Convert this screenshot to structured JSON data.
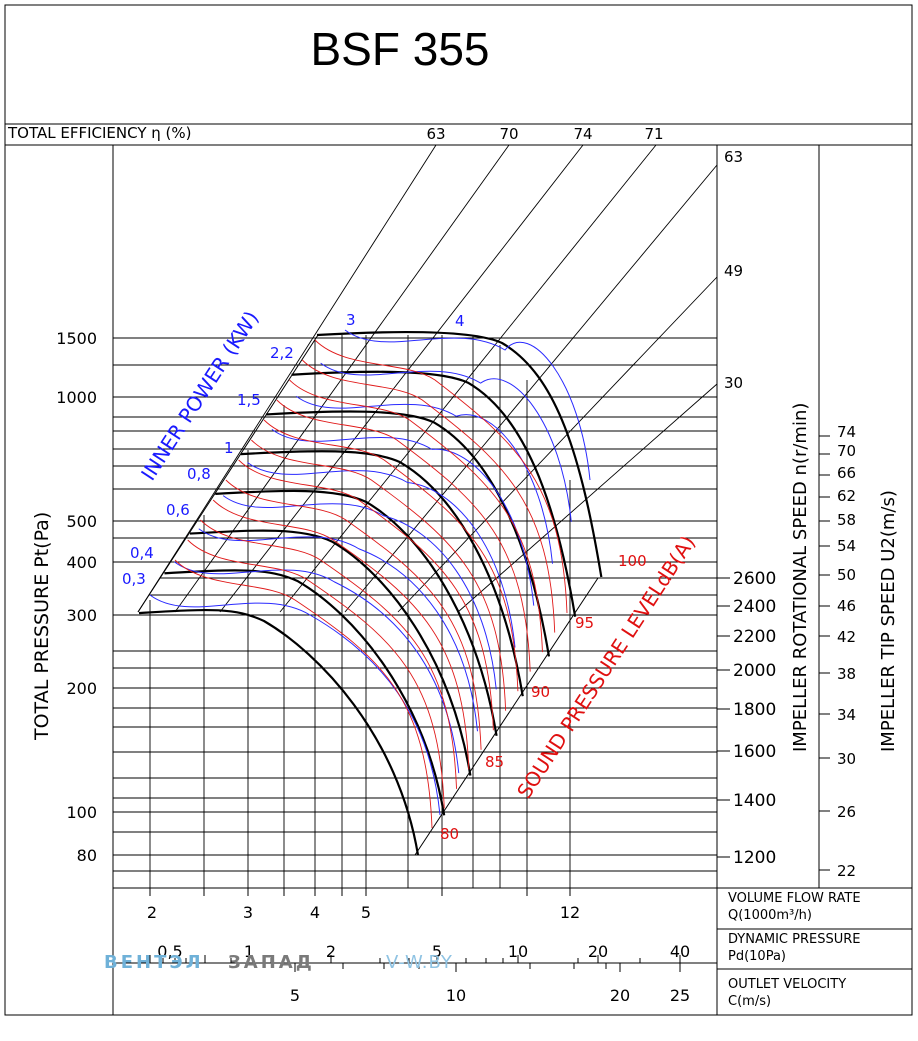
{
  "chart_data": {
    "type": "line",
    "title": "BSF 355",
    "efficiency": {
      "label": "TOTAL EFFICIENCY η (%)",
      "values": [
        "63",
        "70",
        "74",
        "71"
      ]
    },
    "y_axis": {
      "label": "TOTAL PRESSURE Pt(Pa)",
      "scale": "log",
      "ylim": [
        75,
        1700
      ],
      "ticks": [
        "1500",
        "1000",
        "500",
        "400",
        "300",
        "200",
        "100",
        "80"
      ]
    },
    "x_axis": {
      "scale": "log",
      "flow": {
        "label_line1": "VOLUME FLOW RATE",
        "label_line2": "Q(1000m³/h)",
        "ticks": [
          "2",
          "3",
          "4",
          "5",
          "12"
        ]
      },
      "dynamic_pressure": {
        "label_line1": "DYNAMIC PRESSURE",
        "label_line2": "Pd(10Pa)",
        "ticks": [
          "0,5",
          "1",
          "2",
          "5",
          "10",
          "20",
          "40"
        ]
      },
      "outlet_velocity": {
        "label_line1": "OUTLET VELOCITY",
        "label_line2": "C(m/s)",
        "ticks": [
          "5",
          "10",
          "20",
          "25"
        ]
      }
    },
    "inner_power": {
      "label": "INNER POWER (KW)",
      "values": [
        "0,3",
        "0,4",
        "0,6",
        "0,8",
        "1",
        "1,5",
        "2,2",
        "3",
        "4"
      ]
    },
    "sound_pressure": {
      "label": "SOUND PRESSURE LEVELdB(A)",
      "values": [
        "80",
        "85",
        "90",
        "95",
        "100"
      ]
    },
    "rotational_speed": {
      "label": "IMPELLER ROTATIONAL SPEED n(r/min)",
      "ticks": [
        "2600",
        "2400",
        "2200",
        "2000",
        "1800",
        "1600",
        "1400",
        "1200"
      ],
      "efficiency_side": [
        "63",
        "49",
        "30"
      ]
    },
    "tip_speed": {
      "label": "IMPELLER TIP SPEED U2(m/s)",
      "ticks": [
        "74",
        "70",
        "66",
        "62",
        "58",
        "54",
        "50",
        "46",
        "42",
        "38",
        "34",
        "30",
        "26",
        "22"
      ]
    },
    "speed_curves_rpm": [
      1200,
      1300,
      1400,
      1500,
      1600,
      1700,
      1800,
      1900,
      2000,
      2100,
      2200,
      2300,
      2400,
      2500,
      2600
    ],
    "speed_curves_labeled_rpm": [
      1200,
      1400,
      1600,
      1800,
      2000,
      2200,
      2400,
      2600
    ],
    "watermark": {
      "part1": "ВЕНТЭЛ",
      "part2": "ЗАПАД",
      "part3": "V-W.BY"
    }
  }
}
